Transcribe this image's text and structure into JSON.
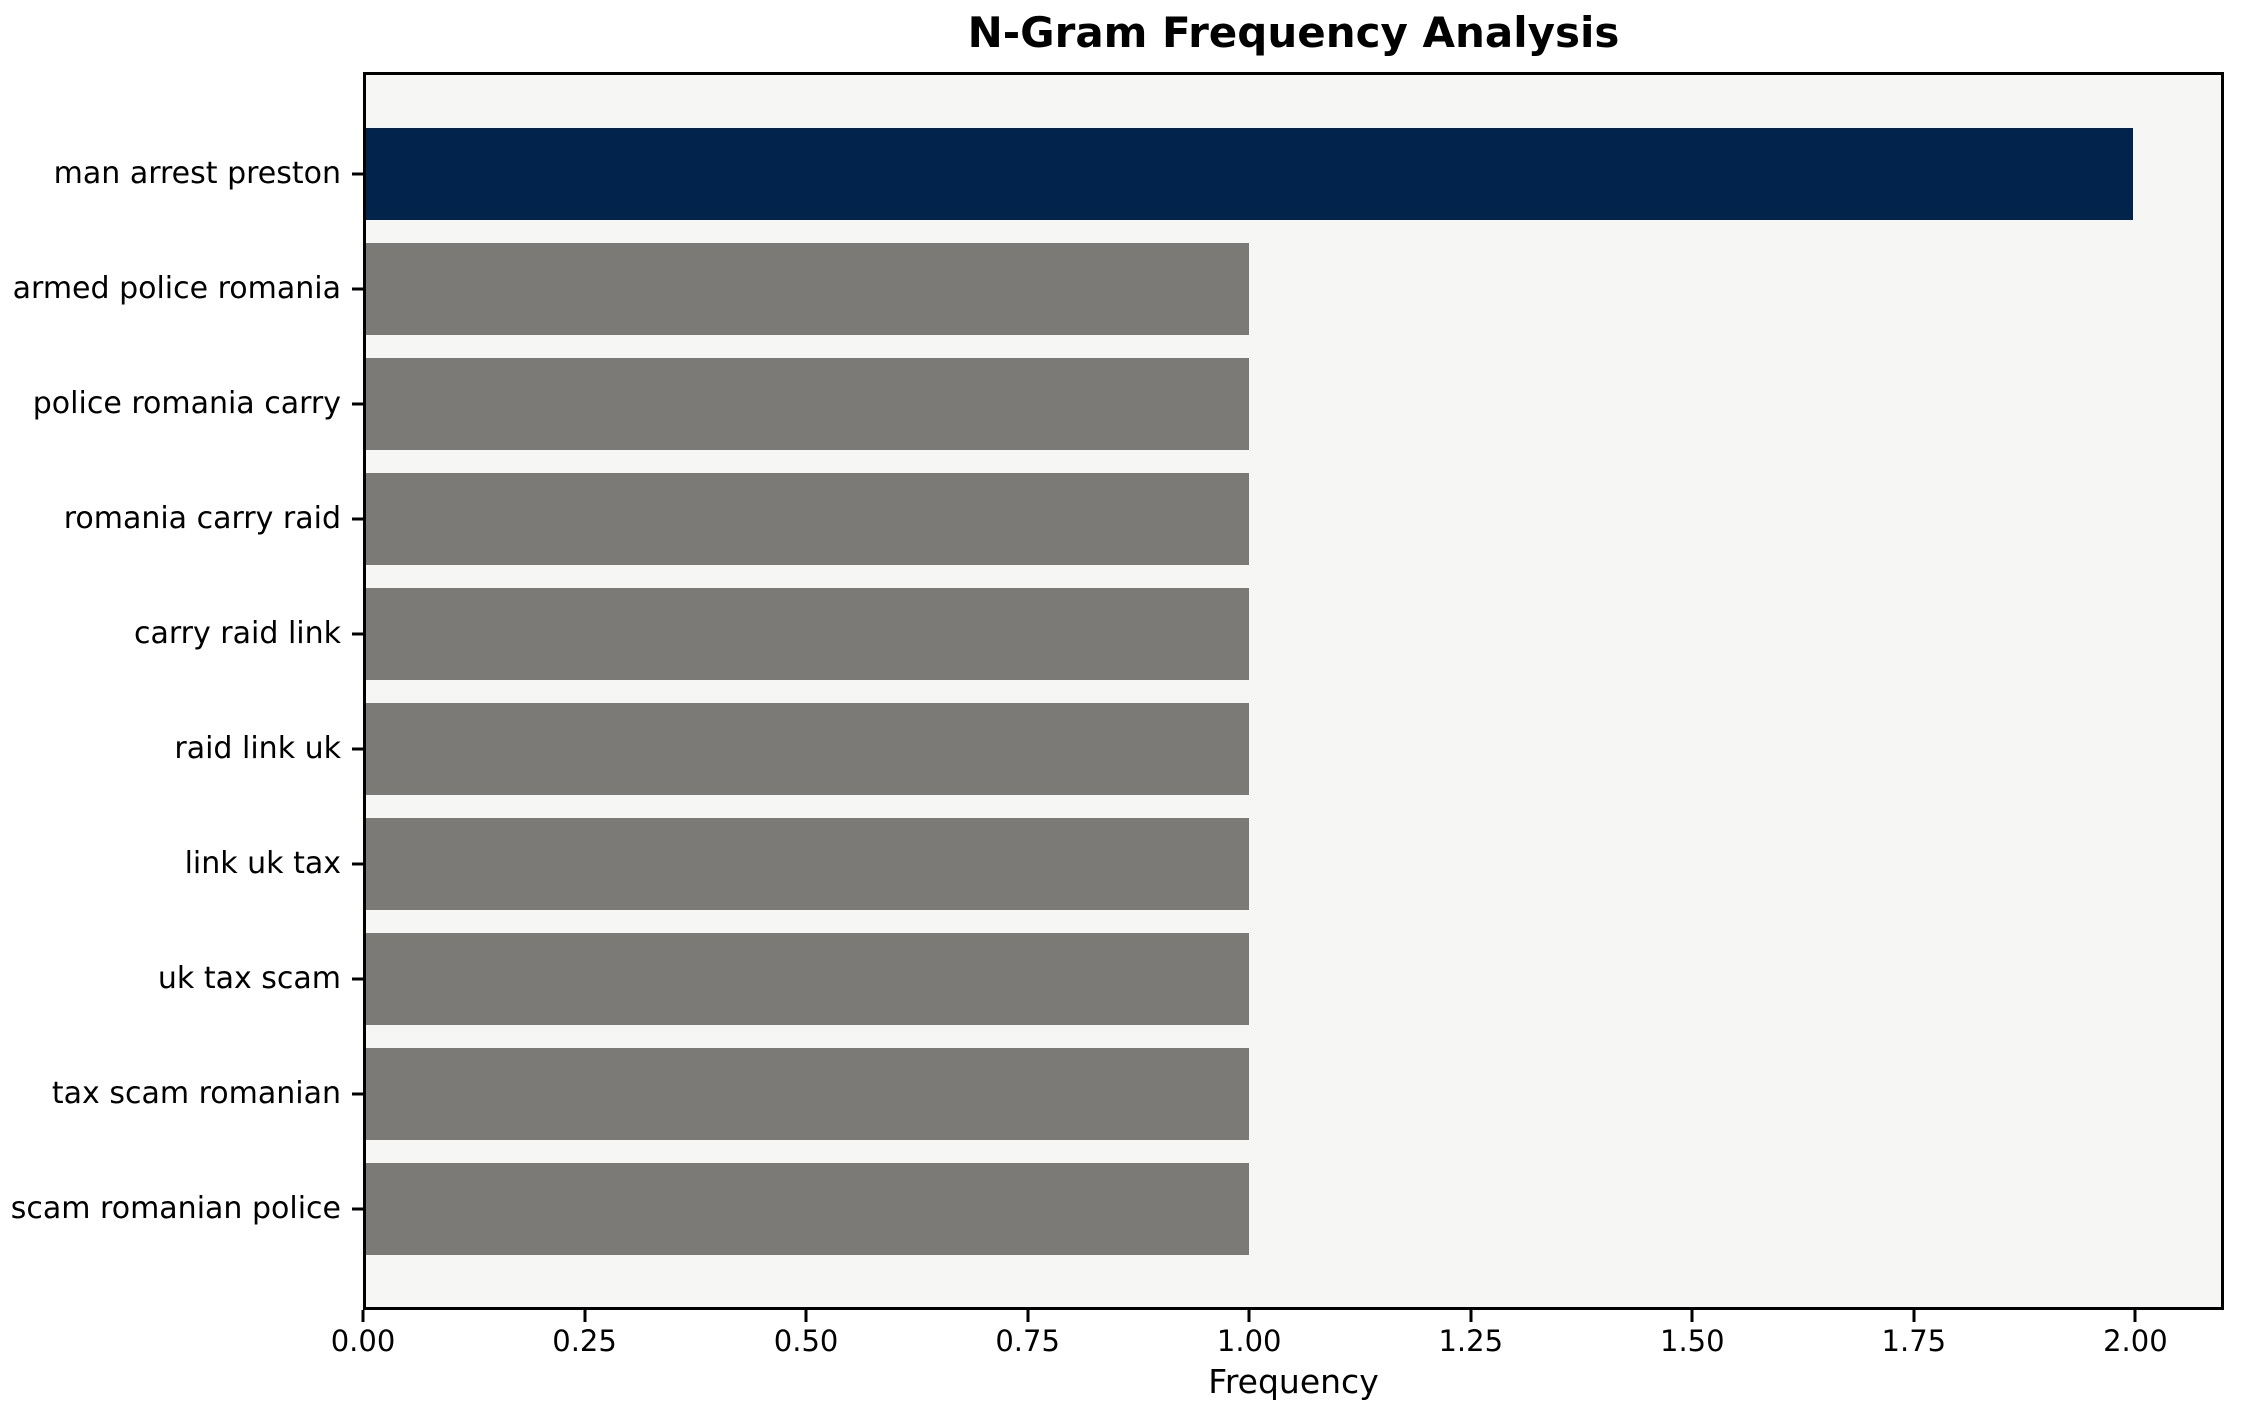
{
  "chart_data": {
    "type": "bar",
    "orientation": "horizontal",
    "title": "N-Gram Frequency Analysis",
    "xlabel": "Frequency",
    "ylabel": "",
    "categories": [
      "man arrest preston",
      "armed police romania",
      "police romania carry",
      "romania carry raid",
      "carry raid link",
      "raid link uk",
      "link uk tax",
      "uk tax scam",
      "tax scam romanian",
      "scam romanian police"
    ],
    "values": [
      2,
      1,
      1,
      1,
      1,
      1,
      1,
      1,
      1,
      1
    ],
    "bar_colors": [
      "#02234c",
      "#7b7a77",
      "#7b7a77",
      "#7b7a77",
      "#7b7a77",
      "#7b7a77",
      "#7b7a77",
      "#7b7a77",
      "#7b7a77",
      "#7b7a77"
    ],
    "xlim": [
      0,
      2.1
    ],
    "xtick_values": [
      0,
      0.25,
      0.5,
      0.75,
      1.0,
      1.25,
      1.5,
      1.75,
      2.0
    ],
    "xtick_labels": [
      "0.00",
      "0.25",
      "0.50",
      "0.75",
      "1.00",
      "1.25",
      "1.50",
      "1.75",
      "2.00"
    ],
    "grid": false,
    "legend_position": "none",
    "colors": {
      "highlight_bar": "#02234c",
      "default_bar": "#7b7a77",
      "plot_background": "#f6f6f5",
      "figure_background": "#ffffff",
      "axis_and_text": "#000000"
    }
  }
}
